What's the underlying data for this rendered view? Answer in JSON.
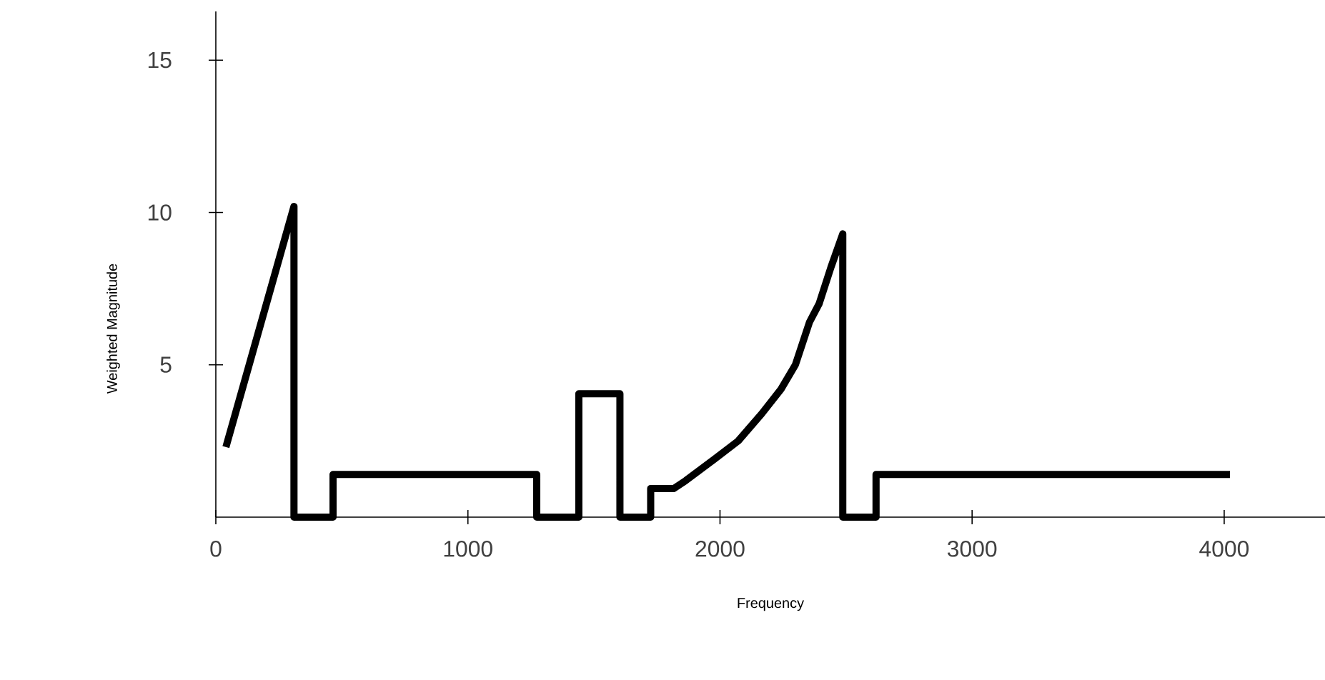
{
  "chart_data": {
    "type": "line",
    "xlabel": "Frequency",
    "ylabel": "Weighted Magnitude",
    "xlim": [
      0,
      4400
    ],
    "ylim": [
      0,
      16.6
    ],
    "xticks": [
      0,
      1000,
      2000,
      3000,
      4000
    ],
    "yticks": [
      5,
      10,
      15
    ],
    "grid": false,
    "marker": "none",
    "line_style": "solid",
    "series": [
      {
        "color": "#000000",
        "x": [
          40,
          310,
          310,
          465,
          465,
          1273,
          1273,
          1440,
          1440,
          1603,
          1603,
          1725,
          1725,
          1817,
          1864,
          1977,
          2072,
          2166,
          2242,
          2299,
          2355,
          2393,
          2440,
          2487,
          2487,
          2619,
          2619,
          4023
        ],
        "values": [
          2.3,
          10.2,
          0,
          0,
          1.4,
          1.4,
          0,
          0,
          4.05,
          4.05,
          0,
          0,
          0.94,
          0.94,
          1.2,
          1.9,
          2.5,
          3.4,
          4.2,
          5.0,
          6.4,
          7.0,
          8.2,
          9.3,
          0,
          0,
          1.4,
          1.4
        ]
      }
    ]
  }
}
